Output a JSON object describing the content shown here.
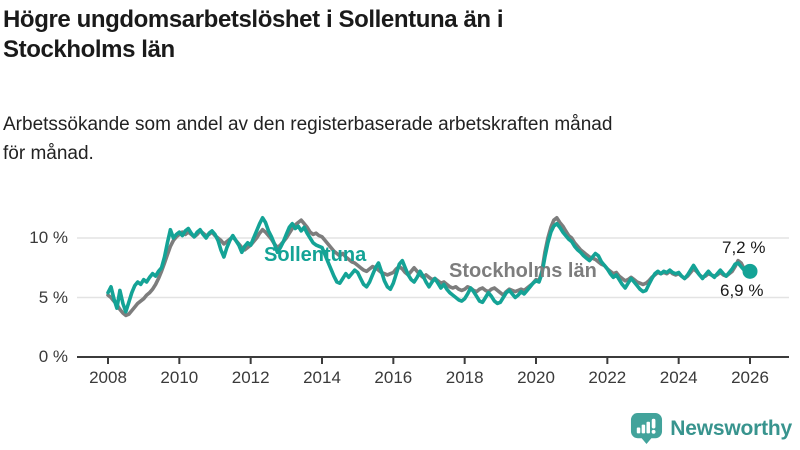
{
  "header": {
    "title_lines": [
      "Högre ungdomsarbetslöshet i Sollentuna än i",
      "Stockholms län"
    ],
    "subtitle_lines": [
      "Arbetssökande som andel av den registerbaserade arbetskraften månad",
      "för månad."
    ]
  },
  "chart_data": {
    "type": "line",
    "title": "Högre ungdomsarbetslöshet i Sollentuna än i Stockholms län",
    "subtitle": "Arbetssökande som andel av den registerbaserade arbetskraften månad för månad.",
    "unit": "%",
    "x_start_year": 2008,
    "x_end_year": 2026,
    "points_per_year": 12,
    "x_ticks": [
      2008,
      2010,
      2012,
      2014,
      2016,
      2018,
      2020,
      2022,
      2024,
      2026
    ],
    "y_ticks": [
      {
        "value": 0,
        "label": "0 %"
      },
      {
        "value": 5,
        "label": "5 %"
      },
      {
        "value": 10,
        "label": "10 %"
      }
    ],
    "ylim": [
      0,
      12.8
    ],
    "grid": "horizontal",
    "legend_position": "inline-labels",
    "series": [
      {
        "name": "Stockholms län",
        "color": "#7d7d7d",
        "end_label": "6,9 %",
        "end_value": 6.9,
        "end_dot": false,
        "values": [
          5.2,
          5.0,
          4.7,
          4.4,
          4.0,
          3.7,
          3.5,
          3.6,
          3.9,
          4.2,
          4.5,
          4.7,
          4.9,
          5.2,
          5.4,
          5.7,
          6.1,
          6.6,
          7.2,
          7.9,
          8.6,
          9.3,
          9.8,
          10.1,
          10.3,
          10.5,
          10.3,
          10.5,
          10.3,
          10.1,
          10.3,
          10.6,
          10.4,
          10.2,
          10.3,
          10.5,
          10.2,
          10.0,
          9.8,
          9.5,
          9.7,
          9.9,
          10.1,
          9.8,
          9.5,
          9.2,
          9.0,
          9.2,
          9.4,
          9.7,
          10.0,
          10.4,
          10.7,
          10.5,
          10.2,
          9.9,
          9.5,
          9.2,
          9.4,
          9.7,
          10.0,
          10.4,
          10.8,
          11.1,
          11.3,
          11.5,
          11.2,
          10.9,
          10.5,
          10.3,
          10.4,
          10.2,
          10.1,
          9.8,
          9.5,
          9.2,
          8.9,
          8.7,
          8.5,
          8.7,
          8.4,
          8.2,
          8.0,
          7.9,
          7.7,
          7.5,
          7.3,
          7.2,
          7.4,
          7.6,
          7.5,
          7.3,
          7.1,
          7.0,
          6.9,
          7.0,
          7.1,
          7.4,
          7.6,
          7.4,
          7.1,
          6.9,
          7.2,
          7.5,
          7.2,
          6.9,
          6.7,
          6.9,
          6.7,
          6.5,
          6.6,
          6.4,
          6.2,
          6.3,
          6.1,
          5.9,
          5.8,
          5.9,
          5.7,
          5.6,
          5.7,
          5.9,
          5.8,
          5.6,
          5.5,
          5.7,
          5.8,
          5.6,
          5.5,
          5.7,
          5.8,
          5.6,
          5.4,
          5.2,
          5.5,
          5.7,
          5.6,
          5.5,
          5.6,
          5.7,
          5.6,
          5.8,
          6.0,
          6.2,
          6.5,
          6.4,
          7.2,
          8.8,
          10.0,
          10.9,
          11.5,
          11.7,
          11.3,
          11.0,
          10.6,
          10.2,
          10.0,
          9.6,
          9.3,
          9.0,
          8.8,
          8.6,
          8.4,
          8.3,
          8.2,
          8.0,
          7.8,
          7.7,
          7.4,
          7.2,
          7.0,
          7.1,
          6.8,
          6.6,
          6.4,
          6.5,
          6.7,
          6.5,
          6.3,
          6.2,
          6.1,
          6.2,
          6.4,
          6.7,
          6.9,
          7.1,
          7.0,
          7.1,
          7.0,
          7.2,
          7.0,
          6.9,
          7.0,
          6.8,
          6.6,
          6.8,
          7.1,
          7.4,
          7.2,
          6.9,
          6.7,
          6.8,
          7.0,
          6.9,
          6.8,
          6.9,
          7.1,
          6.9,
          6.8,
          7.0,
          7.2,
          7.6,
          8.1,
          7.9,
          7.4,
          7.0,
          6.9
        ]
      },
      {
        "name": "Sollentuna",
        "color": "#14a396",
        "end_label": "7,2 %",
        "end_value": 7.2,
        "end_dot": true,
        "values": [
          5.4,
          5.9,
          4.9,
          4.1,
          5.6,
          4.5,
          3.8,
          4.6,
          5.4,
          6.0,
          6.3,
          6.1,
          6.5,
          6.3,
          6.7,
          7.0,
          6.8,
          7.2,
          7.5,
          8.4,
          9.6,
          10.7,
          10.0,
          10.3,
          10.5,
          10.2,
          10.6,
          10.8,
          10.4,
          10.1,
          10.5,
          10.7,
          10.3,
          10.0,
          10.4,
          10.6,
          10.3,
          9.8,
          9.0,
          8.4,
          9.2,
          9.8,
          10.2,
          9.8,
          9.4,
          8.8,
          9.3,
          9.6,
          9.4,
          10.0,
          10.6,
          11.2,
          11.7,
          11.3,
          10.6,
          10.1,
          9.5,
          8.8,
          9.2,
          9.7,
          10.3,
          10.9,
          11.2,
          10.8,
          11.0,
          10.6,
          10.9,
          10.4,
          10.0,
          9.6,
          9.4,
          9.3,
          9.2,
          8.6,
          8.0,
          7.4,
          6.8,
          6.3,
          6.2,
          6.6,
          7.0,
          6.7,
          7.0,
          7.3,
          7.1,
          6.6,
          6.1,
          5.9,
          6.3,
          6.9,
          7.5,
          7.9,
          7.2,
          6.4,
          5.9,
          5.7,
          6.2,
          7.0,
          7.8,
          8.1,
          7.5,
          6.9,
          6.5,
          6.3,
          6.7,
          7.2,
          6.8,
          6.3,
          5.9,
          6.3,
          6.6,
          6.2,
          5.8,
          6.1,
          5.7,
          5.4,
          5.2,
          5.0,
          4.8,
          4.7,
          4.9,
          5.3,
          5.8,
          5.5,
          5.1,
          4.7,
          4.6,
          5.0,
          5.4,
          5.1,
          4.7,
          4.5,
          4.6,
          5.0,
          5.4,
          5.6,
          5.3,
          5.0,
          5.2,
          5.5,
          5.3,
          5.6,
          5.9,
          6.2,
          6.4,
          6.3,
          7.0,
          8.4,
          9.6,
          10.5,
          11.0,
          11.2,
          10.9,
          10.5,
          10.2,
          9.9,
          9.7,
          9.3,
          9.0,
          8.8,
          8.5,
          8.3,
          8.1,
          8.4,
          8.7,
          8.5,
          8.0,
          7.7,
          7.4,
          7.0,
          6.7,
          6.9,
          6.5,
          6.1,
          5.8,
          6.2,
          6.6,
          6.3,
          6.0,
          5.7,
          5.5,
          5.6,
          6.1,
          6.6,
          7.0,
          7.2,
          7.0,
          7.2,
          7.1,
          7.3,
          7.1,
          7.0,
          7.1,
          6.8,
          6.6,
          6.9,
          7.3,
          7.7,
          7.3,
          6.9,
          6.6,
          6.9,
          7.2,
          6.9,
          6.7,
          7.0,
          7.3,
          7.0,
          6.8,
          7.1,
          7.4,
          7.8,
          7.9,
          7.6,
          7.3,
          7.1,
          7.2
        ]
      }
    ]
  },
  "colors": {
    "sollentuna": "#14a396",
    "stockholm": "#7d7d7d",
    "gridline": "#e3e3e3",
    "axis": "#3b3b3b",
    "brand_icon": "#42a39b",
    "brand_text": "#38948e"
  },
  "footer": {
    "brand": "Newsworthy"
  }
}
